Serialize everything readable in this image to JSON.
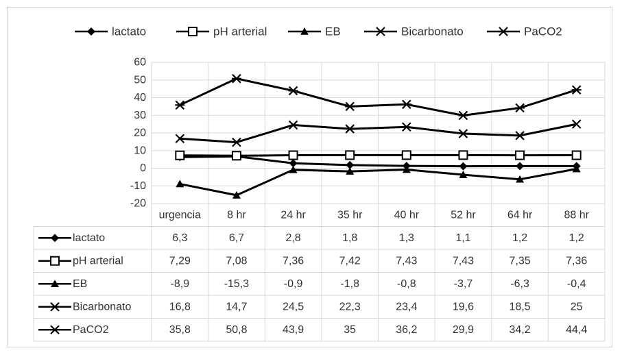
{
  "chart_data": {
    "type": "line",
    "categories": [
      "urgencia",
      "8 hr",
      "24 hr",
      "35 hr",
      "40 hr",
      "52 hr",
      "64 hr",
      "88 hr"
    ],
    "ylim": [
      -20,
      60
    ],
    "yticks": [
      60,
      50,
      40,
      30,
      20,
      10,
      0,
      -10,
      -20
    ],
    "grid": true,
    "legend_position": "top",
    "data_table": true,
    "series": [
      {
        "name": "lactato",
        "marker": "diamond",
        "values": [
          6.3,
          6.7,
          2.8,
          1.8,
          1.3,
          1.1,
          1.2,
          1.2
        ],
        "labels": [
          "6,3",
          "6,7",
          "2,8",
          "1,8",
          "1,3",
          "1,1",
          "1,2",
          "1,2"
        ]
      },
      {
        "name": "pH arterial",
        "marker": "square-open",
        "values": [
          7.29,
          7.08,
          7.36,
          7.42,
          7.43,
          7.43,
          7.35,
          7.36
        ],
        "labels": [
          "7,29",
          "7,08",
          "7,36",
          "7,42",
          "7,43",
          "7,43",
          "7,35",
          "7,36"
        ]
      },
      {
        "name": "EB",
        "marker": "triangle",
        "values": [
          -8.9,
          -15.3,
          -0.9,
          -1.8,
          -0.8,
          -3.7,
          -6.3,
          -0.4
        ],
        "labels": [
          "-8,9",
          "-15,3",
          "-0,9",
          "-1,8",
          "-0,8",
          "-3,7",
          "-6,3",
          "-0,4"
        ]
      },
      {
        "name": "Bicarbonato",
        "marker": "x",
        "values": [
          16.8,
          14.7,
          24.5,
          22.3,
          23.4,
          19.6,
          18.5,
          25
        ],
        "labels": [
          "16,8",
          "14,7",
          "24,5",
          "22,3",
          "23,4",
          "19,6",
          "18,5",
          "25"
        ]
      },
      {
        "name": "PaCO2",
        "marker": "asterisk",
        "values": [
          35.8,
          50.8,
          43.9,
          35,
          36.2,
          29.9,
          34.2,
          44.4
        ],
        "labels": [
          "35,8",
          "50,8",
          "43,9",
          "35",
          "36,2",
          "29,9",
          "34,2",
          "44,4"
        ]
      }
    ]
  },
  "colors": {
    "line": "#000000",
    "grid": "#d9d9d9",
    "text": "#333333"
  }
}
